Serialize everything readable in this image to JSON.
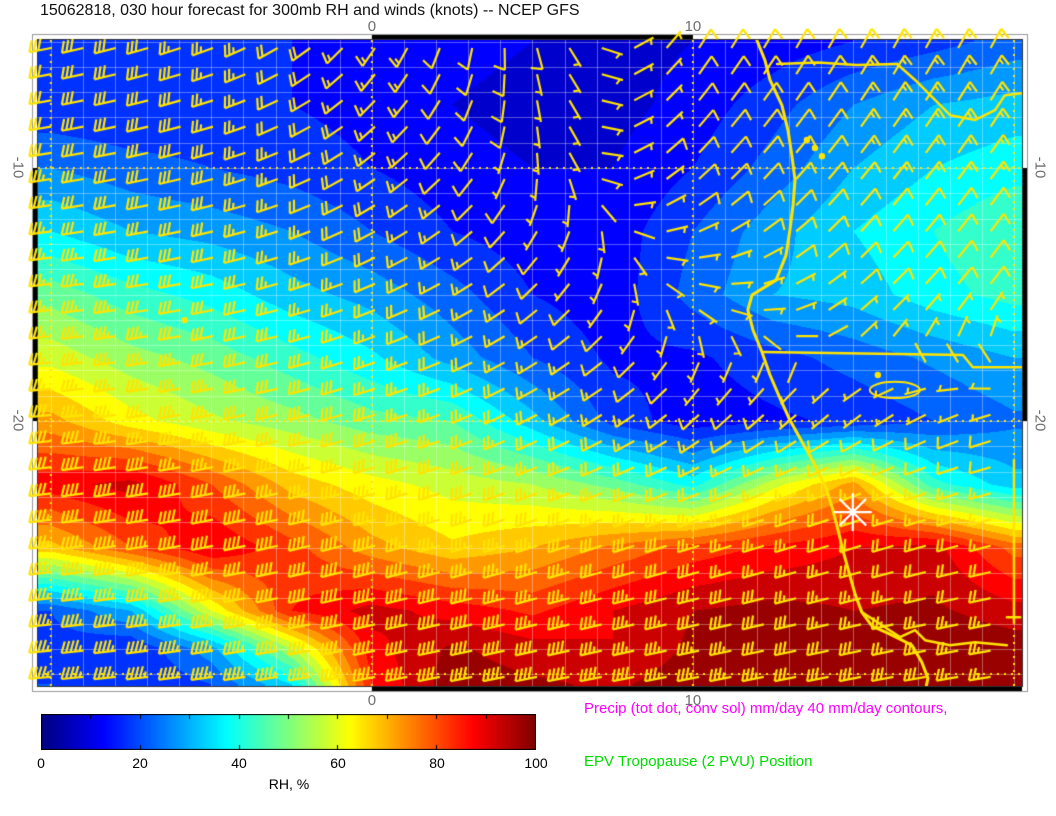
{
  "title": "15062818, 030 hour forecast for 300mb RH and winds (knots) -- NCEP GFS",
  "legend": {
    "precip_label": "Precip (tot dot, conv sol) mm/day 40 mm/day contours,",
    "precip_color": "#ff00ff",
    "epv_label": "EPV Tropopause (2 PVU) Position",
    "epv_color": "#00dd00"
  },
  "colorbar": {
    "label": "RH, %",
    "min": 0,
    "max": 100,
    "ticks": [
      "0",
      "20",
      "40",
      "60",
      "80",
      "100"
    ],
    "colormap": "jet"
  },
  "axes": {
    "tick_color": "#6e6e6e",
    "lon_range": [
      -10.4,
      20.25
    ],
    "lat_range": [
      -4.94,
      -30.47
    ],
    "top_ticks": [
      {
        "value": 0,
        "label": "0"
      },
      {
        "value": 10,
        "label": "10"
      }
    ],
    "bottom_ticks": [
      {
        "value": 0,
        "label": "0"
      },
      {
        "value": 10,
        "label": "10"
      }
    ],
    "left_ticks": [
      {
        "value": -10,
        "label": "-10"
      },
      {
        "value": -20,
        "label": "-20"
      }
    ],
    "right_ticks": [
      {
        "value": -10,
        "label": "-10"
      },
      {
        "value": -20,
        "label": "-20"
      }
    ]
  },
  "chart_data": {
    "type": "heatmap",
    "field": "relative humidity at 300mb, percent, with wind barbs (knots)",
    "title": "15062818, 030 hour forecast for 300mb RH and winds (knots) -- NCEP GFS",
    "colormap": "jet",
    "rh_grid": {
      "lons": [
        -10,
        -7.5,
        -5,
        -2.5,
        0,
        2.5,
        5,
        7.5,
        10,
        12.5,
        15,
        17.5,
        20
      ],
      "lats": [
        -5,
        -7.5,
        -10,
        -12.5,
        -15,
        -17.5,
        -20,
        -22.5,
        -25,
        -27.5,
        -29,
        -30.4
      ],
      "values": [
        [
          18,
          16,
          15,
          15,
          14,
          12,
          10,
          8,
          10,
          12,
          15,
          18,
          22
        ],
        [
          16,
          15,
          16,
          15,
          13,
          10,
          8,
          8,
          12,
          18,
          25,
          30,
          32
        ],
        [
          25,
          22,
          20,
          18,
          15,
          12,
          10,
          10,
          15,
          22,
          30,
          35,
          38
        ],
        [
          35,
          30,
          28,
          25,
          20,
          15,
          12,
          12,
          20,
          28,
          35,
          40,
          45
        ],
        [
          48,
          42,
          38,
          32,
          28,
          22,
          15,
          12,
          22,
          30,
          32,
          38,
          42
        ],
        [
          58,
          52,
          48,
          42,
          36,
          28,
          20,
          14,
          14,
          18,
          22,
          26,
          30
        ],
        [
          72,
          62,
          56,
          52,
          47,
          45,
          32,
          18,
          12,
          14,
          16,
          20,
          24
        ],
        [
          88,
          92,
          80,
          68,
          62,
          58,
          55,
          48,
          38,
          58,
          72,
          42,
          32
        ],
        [
          68,
          80,
          90,
          82,
          72,
          66,
          70,
          76,
          82,
          86,
          90,
          92,
          78
        ],
        [
          20,
          30,
          60,
          85,
          92,
          88,
          84,
          90,
          95,
          97,
          95,
          96,
          92
        ],
        [
          18,
          15,
          28,
          55,
          88,
          96,
          92,
          90,
          96,
          100,
          98,
          100,
          98
        ],
        [
          20,
          15,
          20,
          35,
          85,
          98,
          96,
          94,
          98,
          100,
          100,
          100,
          100
        ]
      ],
      "contour_step": 5
    },
    "wind_grid": {
      "units": "knots",
      "lons": [
        -10,
        -5,
        0,
        5,
        10,
        15,
        20
      ],
      "lats": [
        -5,
        -10,
        -15,
        -20,
        -25,
        -30.4
      ],
      "u": [
        [
          30,
          25,
          8,
          -2,
          -5,
          -6,
          -7
        ],
        [
          32,
          27,
          14,
          0,
          -7,
          -8,
          -8
        ],
        [
          34,
          30,
          20,
          8,
          -5,
          -6,
          -5
        ],
        [
          38,
          33,
          27,
          18,
          8,
          5,
          7
        ],
        [
          44,
          41,
          37,
          32,
          26,
          20,
          16
        ],
        [
          46,
          44,
          42,
          40,
          36,
          30,
          26
        ]
      ],
      "v": [
        [
          6,
          9,
          12,
          8,
          -8,
          -11,
          -13
        ],
        [
          5,
          7,
          10,
          6,
          -7,
          -10,
          -11
        ],
        [
          4,
          6,
          8,
          7,
          2,
          -5,
          -7
        ],
        [
          4,
          6,
          8,
          9,
          7,
          4,
          2
        ],
        [
          6,
          8,
          10,
          10,
          8,
          6,
          4
        ],
        [
          4,
          6,
          8,
          8,
          7,
          6,
          4
        ]
      ],
      "barb_spacing_deg": 1.0
    },
    "grid_lines": {
      "minor_step_deg": 1,
      "lon_dotted": [
        -10,
        0,
        10,
        20
      ],
      "lat_dotted": [
        -10,
        -20,
        -30
      ]
    },
    "frame_black_segments": {
      "top_lon": [
        [
          0,
          10
        ]
      ],
      "bottom_lon": [
        [
          0,
          20.25
        ]
      ],
      "left_lat": [
        [
          -10,
          -20
        ]
      ],
      "right_lat": [
        [
          -10,
          -20
        ]
      ]
    },
    "map_overlays": {
      "line_color": "#ffe400",
      "coastline": [
        [
          11.99,
          -4.94
        ],
        [
          12.24,
          -5.73
        ],
        [
          12.4,
          -6.52
        ],
        [
          12.77,
          -7.51
        ],
        [
          12.96,
          -8.5
        ],
        [
          13.08,
          -9.49
        ],
        [
          13.18,
          -10.47
        ],
        [
          13.12,
          -11.46
        ],
        [
          13.02,
          -12.45
        ],
        [
          12.9,
          -13.44
        ],
        [
          12.59,
          -14.43
        ],
        [
          11.84,
          -15.02
        ],
        [
          11.71,
          -15.61
        ],
        [
          11.87,
          -16.4
        ],
        [
          12.15,
          -17.27
        ],
        [
          12.4,
          -18.18
        ],
        [
          12.71,
          -19.09
        ],
        [
          13.02,
          -19.96
        ],
        [
          13.4,
          -20.83
        ],
        [
          13.8,
          -21.74
        ],
        [
          14.17,
          -22.73
        ],
        [
          14.36,
          -23.52
        ],
        [
          14.52,
          -24.31
        ],
        [
          14.67,
          -25.1
        ],
        [
          14.86,
          -25.97
        ],
        [
          15.05,
          -26.84
        ],
        [
          15.26,
          -27.55
        ],
        [
          15.58,
          -28.1
        ],
        [
          16.07,
          -28.38
        ],
        [
          16.45,
          -28.62
        ],
        [
          16.82,
          -28.86
        ],
        [
          17.13,
          -29.53
        ],
        [
          17.32,
          -30.16
        ],
        [
          17.23,
          -30.71
        ]
      ],
      "borders": [
        [
          [
            12.62,
            -5.89
          ],
          [
            13.9,
            -5.83
          ],
          [
            15.1,
            -5.93
          ],
          [
            16.36,
            -5.89
          ]
        ],
        [
          [
            16.36,
            -5.89
          ],
          [
            16.92,
            -6.52
          ],
          [
            17.54,
            -7.31
          ],
          [
            18.01,
            -7.91
          ],
          [
            18.79,
            -8.1
          ],
          [
            19.41,
            -7.71
          ],
          [
            19.72,
            -7.12
          ],
          [
            20.25,
            -7.04
          ]
        ],
        [
          [
            12.18,
            -17.27
          ],
          [
            18.41,
            -17.39
          ],
          [
            18.72,
            -17.87
          ],
          [
            20.25,
            -17.87
          ]
        ],
        [
          [
            20.0,
            -21.54
          ],
          [
            20.0,
            -27.98
          ]
        ],
        [
          [
            15.26,
            -27.55
          ],
          [
            15.83,
            -28.02
          ],
          [
            16.45,
            -28.54
          ],
          [
            16.92,
            -28.26
          ],
          [
            17.23,
            -28.66
          ],
          [
            18.01,
            -28.86
          ],
          [
            18.79,
            -28.74
          ],
          [
            19.78,
            -28.86
          ]
        ],
        [
          [
            19.78,
            -27.75
          ],
          [
            20.19,
            -27.75
          ]
        ]
      ],
      "lake_ellipse": {
        "lon": 16.29,
        "lat": -18.77,
        "rlon": 0.78,
        "rlat": 0.32
      },
      "dots": [
        [
          -5.83,
          -16.01
        ],
        [
          15.76,
          -18.18
        ],
        [
          13.55,
          -8.89
        ],
        [
          13.8,
          -9.21
        ],
        [
          14.02,
          -9.53
        ]
      ]
    },
    "marker": {
      "type": "asterisk-8-spoke",
      "lon": 14.98,
      "lat": -23.6,
      "color": "#ffffff",
      "radius_px": 18
    },
    "colors": {
      "barb": "#ffe400",
      "graticule_minor": "rgba(255,255,255,0.35)",
      "graticule_dotted": "#ffe400"
    }
  }
}
